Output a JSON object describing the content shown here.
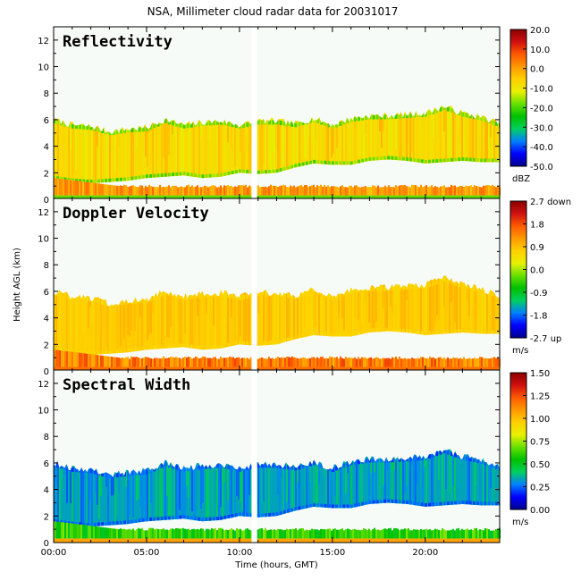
{
  "title": "NSA, Millimeter cloud radar data for 20031017",
  "colors": {
    "background": "#ffffff",
    "plot_background": "#f7fbf7",
    "axes": "#000000"
  },
  "chart_data": [
    {
      "type": "heatmap",
      "title": "Reflectivity",
      "ylabel": "",
      "xlabel": "",
      "ylim": [
        0,
        13
      ],
      "yticks": [
        "0",
        "2",
        "4",
        "6",
        "8",
        "10",
        "12"
      ],
      "xlim": [
        0,
        24
      ],
      "colorbar": {
        "unit": "dBZ",
        "range": [
          -50,
          20
        ],
        "ticks": [
          "20.0",
          "10.0",
          "0.0",
          "-10.0",
          "-20.0",
          "-30.0",
          "-40.0",
          "-50.0"
        ],
        "stops": [
          "#00008b",
          "#0000ff",
          "#0080ff",
          "#00d060",
          "#00c000",
          "#66e000",
          "#e8f000",
          "#ffd000",
          "#ff9900",
          "#ff5a00",
          "#d01010",
          "#8b0000"
        ]
      },
      "fields": {
        "mid_cloud": [
          0.54,
          0.6,
          0.7
        ],
        "edge": [
          0.4,
          0.5
        ],
        "low_cloud": [
          0.66,
          0.8
        ],
        "surface_band": [
          0.4,
          0.5
        ]
      }
    },
    {
      "type": "heatmap",
      "title": "Doppler Velocity",
      "ylabel": "Height AGL (km)",
      "xlabel": "",
      "ylim": [
        0,
        13
      ],
      "yticks": [
        "0",
        "2",
        "4",
        "6",
        "8",
        "10",
        "12"
      ],
      "xlim": [
        0,
        24
      ],
      "colorbar": {
        "unit": "m/s",
        "range": [
          -2.7,
          2.7
        ],
        "ticks": [
          "2.7 down",
          "1.8",
          "0.9",
          "0.0",
          "-0.9",
          "-1.8",
          "-2.7 up"
        ],
        "stops": [
          "#00008b",
          "#0000ff",
          "#0080ff",
          "#00d060",
          "#00c000",
          "#66e000",
          "#e8f000",
          "#ffd000",
          "#ff9900",
          "#ff5a00",
          "#d01010",
          "#8b0000"
        ]
      },
      "fields": {
        "mid_cloud": [
          0.6,
          0.64,
          0.7
        ],
        "edge": [
          0.6,
          0.64
        ],
        "low_cloud": [
          0.68,
          0.85
        ],
        "surface_band": [
          0.68,
          0.9
        ]
      }
    },
    {
      "type": "heatmap",
      "title": "Spectral Width",
      "ylabel": "",
      "xlabel": "Time (hours, GMT)",
      "ylim": [
        0,
        13
      ],
      "yticks": [
        "0",
        "2",
        "4",
        "6",
        "8",
        "10",
        "12"
      ],
      "xlim": [
        0,
        24
      ],
      "xticks": [
        {
          "value": 0,
          "label": "00:00"
        },
        {
          "value": 5,
          "label": "05:00"
        },
        {
          "value": 10,
          "label": "10:00"
        },
        {
          "value": 15,
          "label": "15:00"
        },
        {
          "value": 20,
          "label": "20:00"
        }
      ],
      "colorbar": {
        "unit": "m/s",
        "range": [
          0,
          1.5
        ],
        "ticks": [
          "1.50",
          "1.25",
          "1.00",
          "0.75",
          "0.50",
          "0.25",
          "0.00"
        ],
        "stops": [
          "#00008b",
          "#0000ff",
          "#0080ff",
          "#00d060",
          "#00c000",
          "#66e000",
          "#e8f000",
          "#ffd000",
          "#ff9900",
          "#ff5a00",
          "#d01010",
          "#8b0000"
        ]
      },
      "fields": {
        "mid_cloud": [
          0.14,
          0.22,
          0.3
        ],
        "edge": [
          0.12,
          0.18
        ],
        "low_cloud": [
          0.32,
          0.48
        ],
        "surface_band": [
          0.6,
          0.82
        ]
      }
    }
  ],
  "cloud": {
    "times_h": [
      0,
      1,
      2,
      3,
      4,
      5,
      6,
      7,
      8,
      9,
      10,
      11,
      12,
      13,
      14,
      15,
      16,
      17,
      18,
      19,
      20,
      21,
      22,
      23,
      24
    ],
    "top_km": [
      6.0,
      5.6,
      5.5,
      5.1,
      5.3,
      5.4,
      6.0,
      5.6,
      5.8,
      5.9,
      5.6,
      5.9,
      5.9,
      5.7,
      6.1,
      5.6,
      6.1,
      6.3,
      6.3,
      6.4,
      6.5,
      7.0,
      6.5,
      6.2,
      5.7
    ],
    "base_km": [
      1.5,
      1.3,
      1.2,
      1.3,
      1.4,
      1.6,
      1.7,
      1.8,
      1.6,
      1.7,
      2.0,
      1.9,
      2.0,
      2.4,
      2.7,
      2.6,
      2.6,
      2.9,
      3.0,
      2.9,
      2.7,
      2.8,
      2.9,
      2.8,
      2.8
    ],
    "gaps_h": [
      [
        10.65,
        10.95
      ]
    ],
    "low_cloud_km": [
      0.3,
      1.0
    ]
  }
}
